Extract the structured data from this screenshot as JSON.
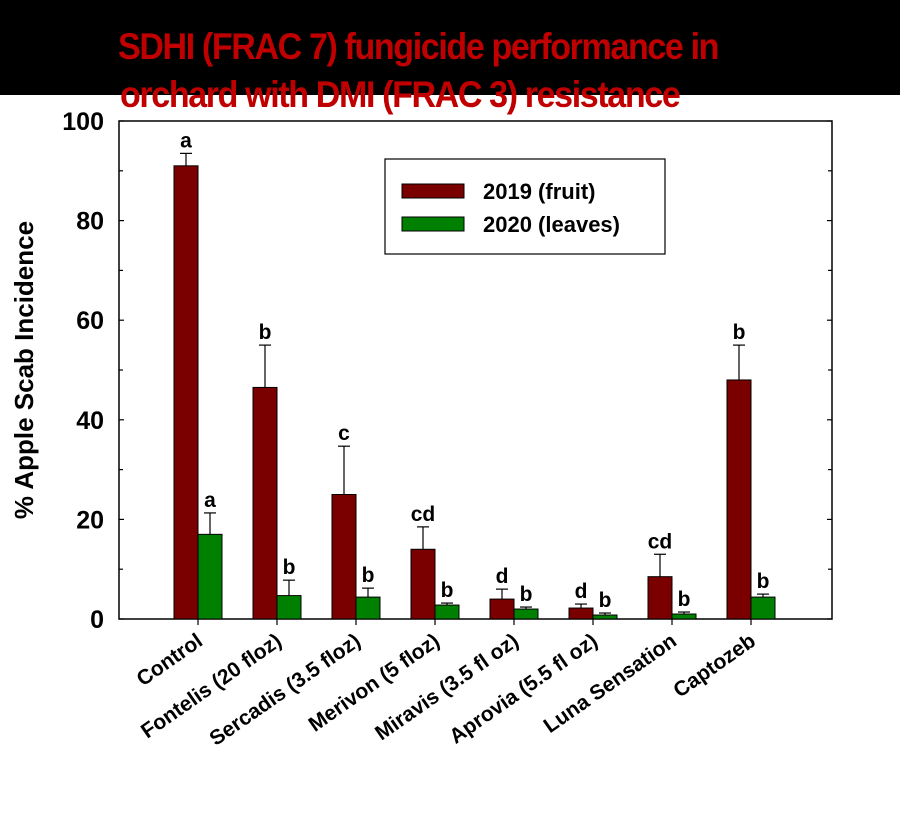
{
  "title": {
    "line1": "SDHI (FRAC 7) fungicide performance in",
    "line2": "orchard with DMI (FRAC 3) resistance"
  },
  "colors": {
    "banner": "#000000",
    "title": "#c00000",
    "series_2019": "#7a0000",
    "series_2020": "#008000"
  },
  "chart_data": {
    "type": "bar",
    "title": "SDHI (FRAC 7) fungicide performance in orchard with DMI (FRAC 3) resistance",
    "xlabel": "",
    "ylabel": "% Apple Scab Incidence",
    "ylim": [
      0,
      100
    ],
    "yticks": [
      0,
      20,
      40,
      60,
      80,
      100
    ],
    "minor_ytick_step": 10,
    "grid": false,
    "legend_position": "upper center",
    "categories": [
      "Control",
      "Fontelis (20 floz)",
      "Sercadis (3.5 floz)",
      "Merivon (5 floz)",
      "Miravis (3.5 fl oz)",
      "Aprovia (5.5 fl oz)",
      "Luna Sensation",
      "Captozeb"
    ],
    "series": [
      {
        "name": "2019 (fruit)",
        "color": "#7a0000",
        "values": [
          91,
          46.5,
          25,
          14,
          4,
          2.2,
          8.5,
          48
        ],
        "error_upper": [
          93.5,
          55,
          34.7,
          18.5,
          6,
          3,
          13,
          55
        ],
        "letters": [
          "a",
          "b",
          "c",
          "cd",
          "d",
          "d",
          "cd",
          "b"
        ]
      },
      {
        "name": "2020 (leaves)",
        "color": "#008000",
        "values": [
          17,
          4.7,
          4.4,
          2.8,
          2,
          0.8,
          1,
          4.4
        ],
        "error_upper": [
          21.3,
          7.8,
          6.2,
          3.2,
          2.4,
          1.2,
          1.4,
          5
        ],
        "letters": [
          "a",
          "b",
          "b",
          "b",
          "b",
          "b",
          "b",
          "b"
        ]
      }
    ]
  }
}
